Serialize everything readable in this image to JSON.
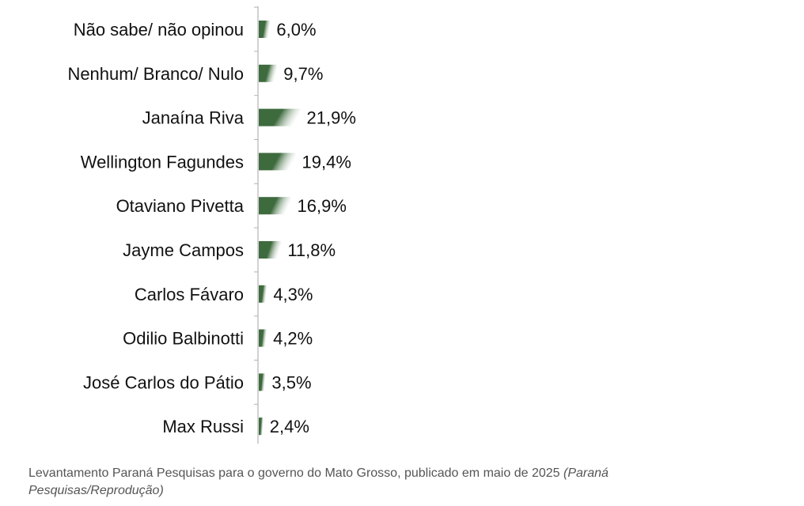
{
  "chart_data": {
    "type": "bar",
    "orientation": "horizontal",
    "categories": [
      "Não sabe/ não opinou",
      "Nenhum/ Branco/ Nulo",
      "Janaína Riva",
      "Wellington Fagundes",
      "Otaviano Pivetta",
      "Jayme Campos",
      "Carlos Fávaro",
      "Odilio Balbinotti",
      "José Carlos do Pátio",
      "Max Russi"
    ],
    "values": [
      6.0,
      9.7,
      21.9,
      19.4,
      16.9,
      11.8,
      4.3,
      4.2,
      3.5,
      2.4
    ],
    "value_labels": [
      "6,0%",
      "9,7%",
      "21,9%",
      "19,4%",
      "16,9%",
      "11,8%",
      "4,3%",
      "4,2%",
      "3,5%",
      "2,4%"
    ],
    "title": "",
    "xlabel": "",
    "ylabel": "",
    "xlim": [
      0,
      100
    ],
    "grid": false,
    "bar_color": "#3e6b3e",
    "bar_highlight": "#ffffff"
  },
  "caption": {
    "text": "Levantamento Paraná Pesquisas para o governo do Mato Grosso, publicado em maio de 2025",
    "credit": "(Paraná Pesquisas/Reprodução)"
  }
}
